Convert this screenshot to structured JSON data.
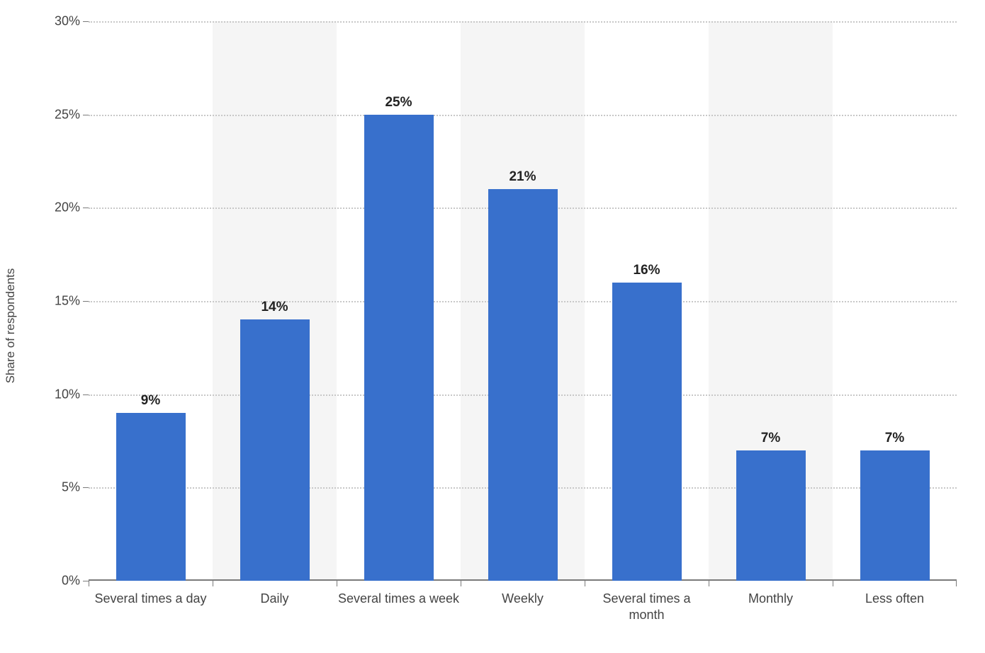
{
  "chart": {
    "type": "bar",
    "y_axis_label": "Share of respondents",
    "y_axis_label_fontsize": 17,
    "y_tick_min": 0,
    "y_tick_max": 30,
    "y_tick_step": 5,
    "y_tick_suffix": "%",
    "y_tick_fontsize": 18,
    "categories": [
      "Several times a day",
      "Daily",
      "Several times a week",
      "Weekly",
      "Several times a month",
      "Monthly",
      "Less often"
    ],
    "values": [
      9,
      14,
      25,
      21,
      16,
      7,
      7
    ],
    "value_suffix": "%",
    "value_label_fontsize": 19,
    "value_label_fontweight": "bold",
    "x_tick_fontsize": 18,
    "bar_color": "#3870cc",
    "bar_width_ratio": 0.56,
    "background_color": "#ffffff",
    "alt_band_color": "#f5f5f5",
    "grid_color": "#c8c8c8",
    "grid_style": "dotted",
    "axis_line_color": "#7a7a7a",
    "text_color": "#444444",
    "value_label_color": "#222222"
  }
}
